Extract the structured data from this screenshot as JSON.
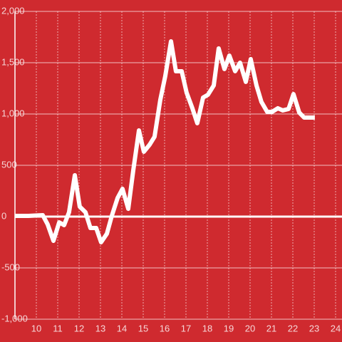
{
  "chart_data": {
    "type": "line",
    "x": [
      9,
      9.63,
      10.3,
      10.53,
      10.8,
      11.07,
      11.3,
      11.53,
      11.8,
      12.03,
      12.3,
      12.53,
      12.8,
      13.03,
      13.3,
      13.53,
      13.8,
      14.03,
      14.3,
      14.53,
      14.8,
      15.03,
      15.3,
      15.53,
      15.8,
      16.03,
      16.3,
      16.53,
      16.8,
      17.03,
      17.3,
      17.53,
      17.8,
      18.03,
      18.3,
      18.53,
      18.8,
      19.03,
      19.3,
      19.53,
      19.8,
      20.03,
      20.3,
      20.53,
      20.8,
      21.03,
      21.3,
      21.53,
      21.8,
      22.03,
      22.3,
      22.53,
      22.8,
      23.03
    ],
    "series": [
      {
        "color": "#ffffff",
        "values": [
          7,
          7,
          14,
          -76,
          -236,
          -56,
          -83,
          42,
          403,
          97,
          42,
          -111,
          -111,
          -250,
          -167,
          7,
          181,
          271,
          76,
          444,
          840,
          632,
          701,
          778,
          1139,
          1368,
          1708,
          1417,
          1417,
          1208,
          1056,
          910,
          1160,
          1188,
          1278,
          1639,
          1438,
          1569,
          1417,
          1500,
          1313,
          1535,
          1278,
          1118,
          1021,
          1021,
          1056,
          1035,
          1049,
          1194,
          1014,
          965,
          965,
          965
        ]
      }
    ],
    "xlim": [
      9,
      24.3
    ],
    "xticks": [
      10,
      11,
      12,
      13,
      14,
      15,
      16,
      17,
      18,
      19,
      20,
      21,
      22,
      23,
      24
    ],
    "ylim": [
      -1000,
      2000
    ],
    "yticks": [
      {
        "value": -1000,
        "label": "-1,000"
      },
      -500,
      0,
      500,
      {
        "value": 1000,
        "label": "1,000"
      },
      {
        "value": 1500,
        "label": "1,500"
      },
      {
        "value": 2000,
        "label": "2,000"
      }
    ],
    "grid": true
  }
}
